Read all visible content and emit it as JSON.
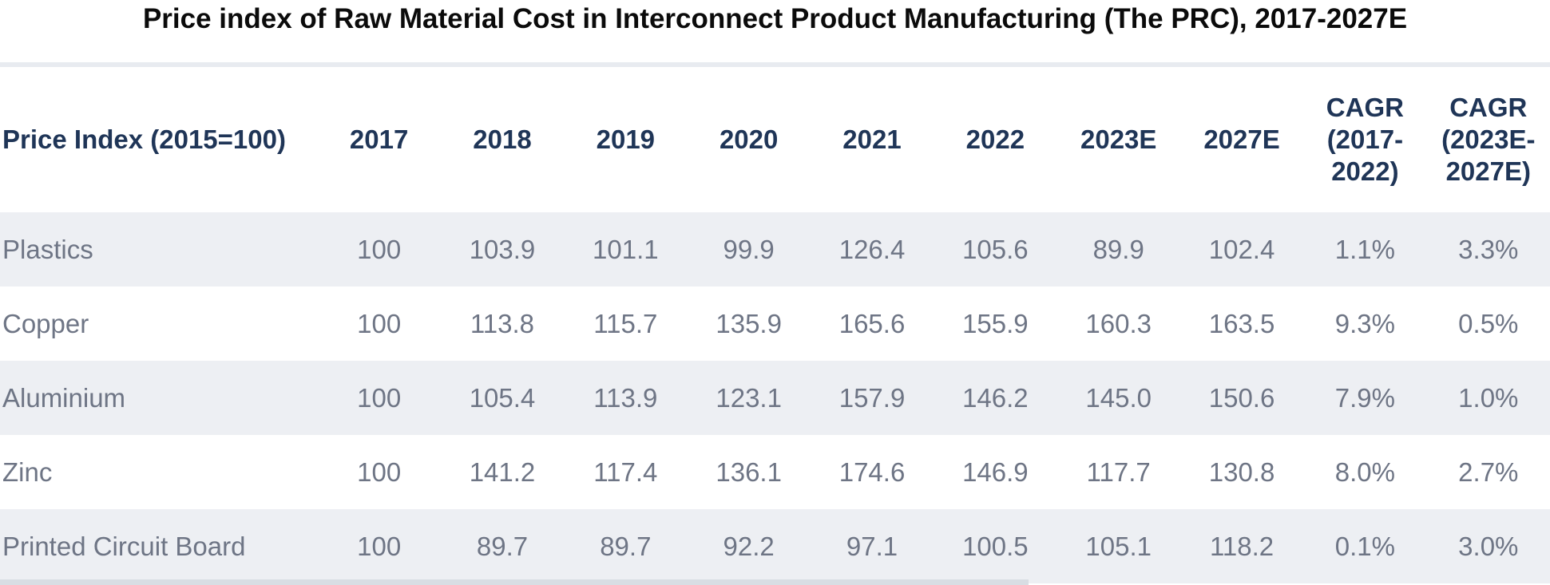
{
  "title": "Price index of Raw Material Cost in Interconnect Product Manufacturing (The PRC), 2017-2027E",
  "colors": {
    "title_text": "#0b0b0b",
    "header_text": "#1f3557",
    "body_text": "#6e7585",
    "row_stripe": "#edeff3",
    "divider": "#e8ebf0",
    "bottom_strip": "#d8dde3"
  },
  "table": {
    "columns": [
      "Price Index (2015=100)",
      "2017",
      "2018",
      "2019",
      "2020",
      "2021",
      "2022",
      "2023E",
      "2027E",
      "CAGR\n(2017-\n2022)",
      "CAGR\n(2023E-\n2027E)"
    ],
    "rows": [
      {
        "label": "Plastics",
        "values": [
          "100",
          "103.9",
          "101.1",
          "99.9",
          "126.4",
          "105.6",
          "89.9",
          "102.4",
          "1.1%",
          "3.3%"
        ]
      },
      {
        "label": "Copper",
        "values": [
          "100",
          "113.8",
          "115.7",
          "135.9",
          "165.6",
          "155.9",
          "160.3",
          "163.5",
          "9.3%",
          "0.5%"
        ]
      },
      {
        "label": "Aluminium",
        "values": [
          "100",
          "105.4",
          "113.9",
          "123.1",
          "157.9",
          "146.2",
          "145.0",
          "150.6",
          "7.9%",
          "1.0%"
        ]
      },
      {
        "label": "Zinc",
        "values": [
          "100",
          "141.2",
          "117.4",
          "136.1",
          "174.6",
          "146.9",
          "117.7",
          "130.8",
          "8.0%",
          "2.7%"
        ]
      },
      {
        "label": "Printed Circuit Board",
        "values": [
          "100",
          "89.7",
          "89.7",
          "92.2",
          "97.1",
          "100.5",
          "105.1",
          "118.2",
          "0.1%",
          "3.0%"
        ]
      }
    ]
  },
  "chart_data": {
    "type": "table",
    "title": "Price index of Raw Material Cost in Interconnect Product Manufacturing (The PRC), 2017-2027E",
    "row_header": "Price Index (2015=100)",
    "categories": [
      "2017",
      "2018",
      "2019",
      "2020",
      "2021",
      "2022",
      "2023E",
      "2027E"
    ],
    "series": [
      {
        "name": "Plastics",
        "values": [
          100,
          103.9,
          101.1,
          99.9,
          126.4,
          105.6,
          89.9,
          102.4
        ],
        "cagr_2017_2022": "1.1%",
        "cagr_2023e_2027e": "3.3%"
      },
      {
        "name": "Copper",
        "values": [
          100,
          113.8,
          115.7,
          135.9,
          165.6,
          155.9,
          160.3,
          163.5
        ],
        "cagr_2017_2022": "9.3%",
        "cagr_2023e_2027e": "0.5%"
      },
      {
        "name": "Aluminium",
        "values": [
          100,
          105.4,
          113.9,
          123.1,
          157.9,
          146.2,
          145.0,
          150.6
        ],
        "cagr_2017_2022": "7.9%",
        "cagr_2023e_2027e": "1.0%"
      },
      {
        "name": "Zinc",
        "values": [
          100,
          141.2,
          117.4,
          136.1,
          174.6,
          146.9,
          117.7,
          130.8
        ],
        "cagr_2017_2022": "8.0%",
        "cagr_2023e_2027e": "2.7%"
      },
      {
        "name": "Printed Circuit Board",
        "values": [
          100,
          89.7,
          89.7,
          92.2,
          97.1,
          100.5,
          105.1,
          118.2
        ],
        "cagr_2017_2022": "0.1%",
        "cagr_2023e_2027e": "3.0%"
      }
    ]
  }
}
